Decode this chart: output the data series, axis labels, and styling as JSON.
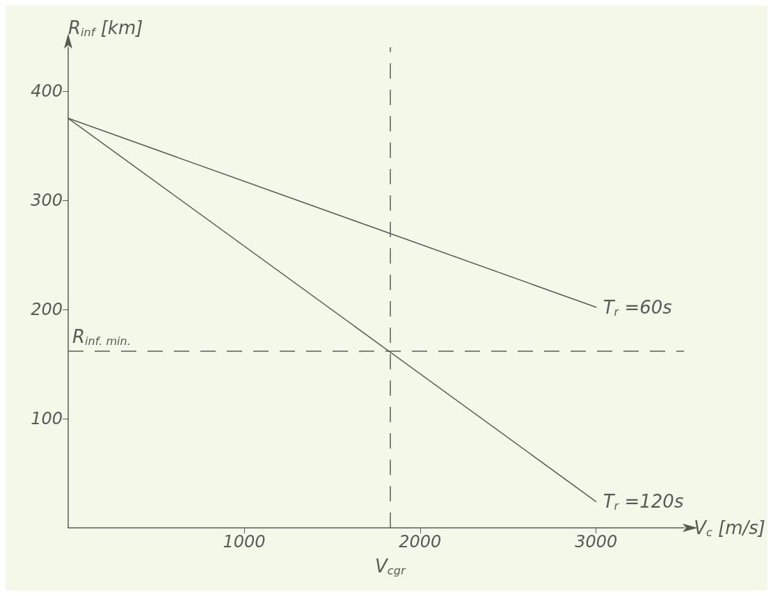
{
  "chart_data": {
    "type": "line",
    "xlabel": "V$_{c}$ [m/s]",
    "ylabel": "R$_{inf}$ [km]",
    "x": [
      0,
      3000
    ],
    "series": [
      {
        "name": "T$_{r}$ =60s",
        "color": "#5a5a5a",
        "values": [
          375,
          202
        ]
      },
      {
        "name": "T$_{r}$ =120s",
        "color": "#5a5a5a",
        "values": [
          375,
          24
        ]
      }
    ],
    "xlim": [
      0,
      3500
    ],
    "xticks": [
      1000,
      2000,
      3000
    ],
    "ylim": [
      0,
      440
    ],
    "yticks": [
      100,
      200,
      300,
      400
    ],
    "ref_lines": [
      {
        "axis": "y",
        "value": 162,
        "label": "R$_{inf. min.}$",
        "color": "#5a5a5a",
        "line_style": "dashed"
      },
      {
        "axis": "x",
        "value": 1830,
        "label": "V$_{cgr}$",
        "color": "#5a5a5a",
        "line_style": "dashed"
      }
    ],
    "grid": false,
    "legend": false,
    "marker": "none",
    "line_style": "solid"
  }
}
